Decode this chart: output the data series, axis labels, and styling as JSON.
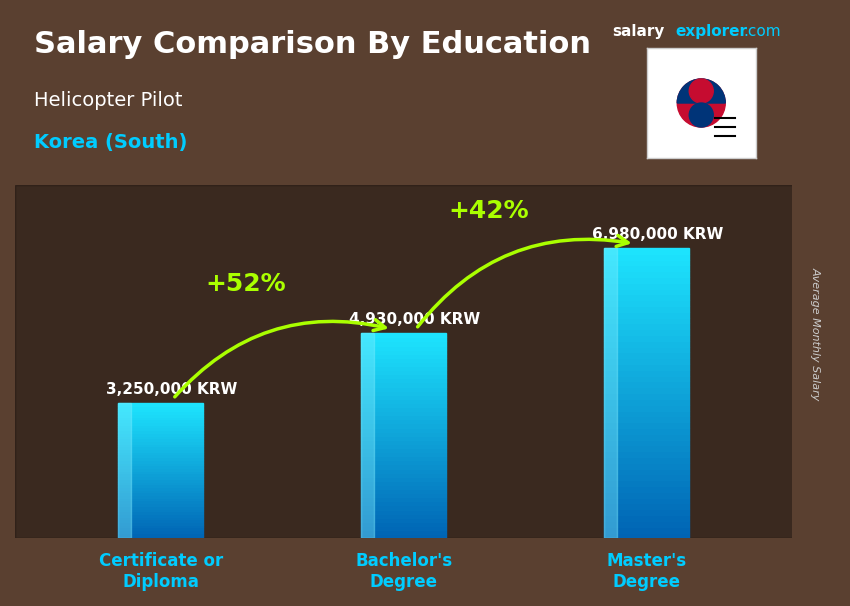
{
  "title_main": "Salary Comparison By Education",
  "title_sub": "Helicopter Pilot",
  "title_country": "Korea (South)",
  "categories": [
    "Certificate or\nDiploma",
    "Bachelor's\nDegree",
    "Master's\nDegree"
  ],
  "values": [
    3250000,
    4930000,
    6980000
  ],
  "value_labels": [
    "3,250,000 KRW",
    "4,930,000 KRW",
    "6,980,000 KRW"
  ],
  "pct_labels": [
    "+52%",
    "+42%"
  ],
  "bar_color_top": "#00d4ff",
  "bar_color_bottom": "#007acc",
  "bar_color_mid": "#00aadd",
  "background_color": "#1a1a2e",
  "title_color": "#ffffff",
  "subtitle_color": "#ffffff",
  "country_color": "#00ccff",
  "value_label_color": "#ffffff",
  "pct_color": "#aaff00",
  "arrow_color": "#aaff00",
  "xlabel_color": "#00ccff",
  "ylabel_text": "Average Monthly Salary",
  "brand_salary": "salary",
  "brand_explorer": "explorer",
  "brand_com": ".com",
  "ylim": [
    0,
    8500000
  ],
  "bar_width": 0.35
}
